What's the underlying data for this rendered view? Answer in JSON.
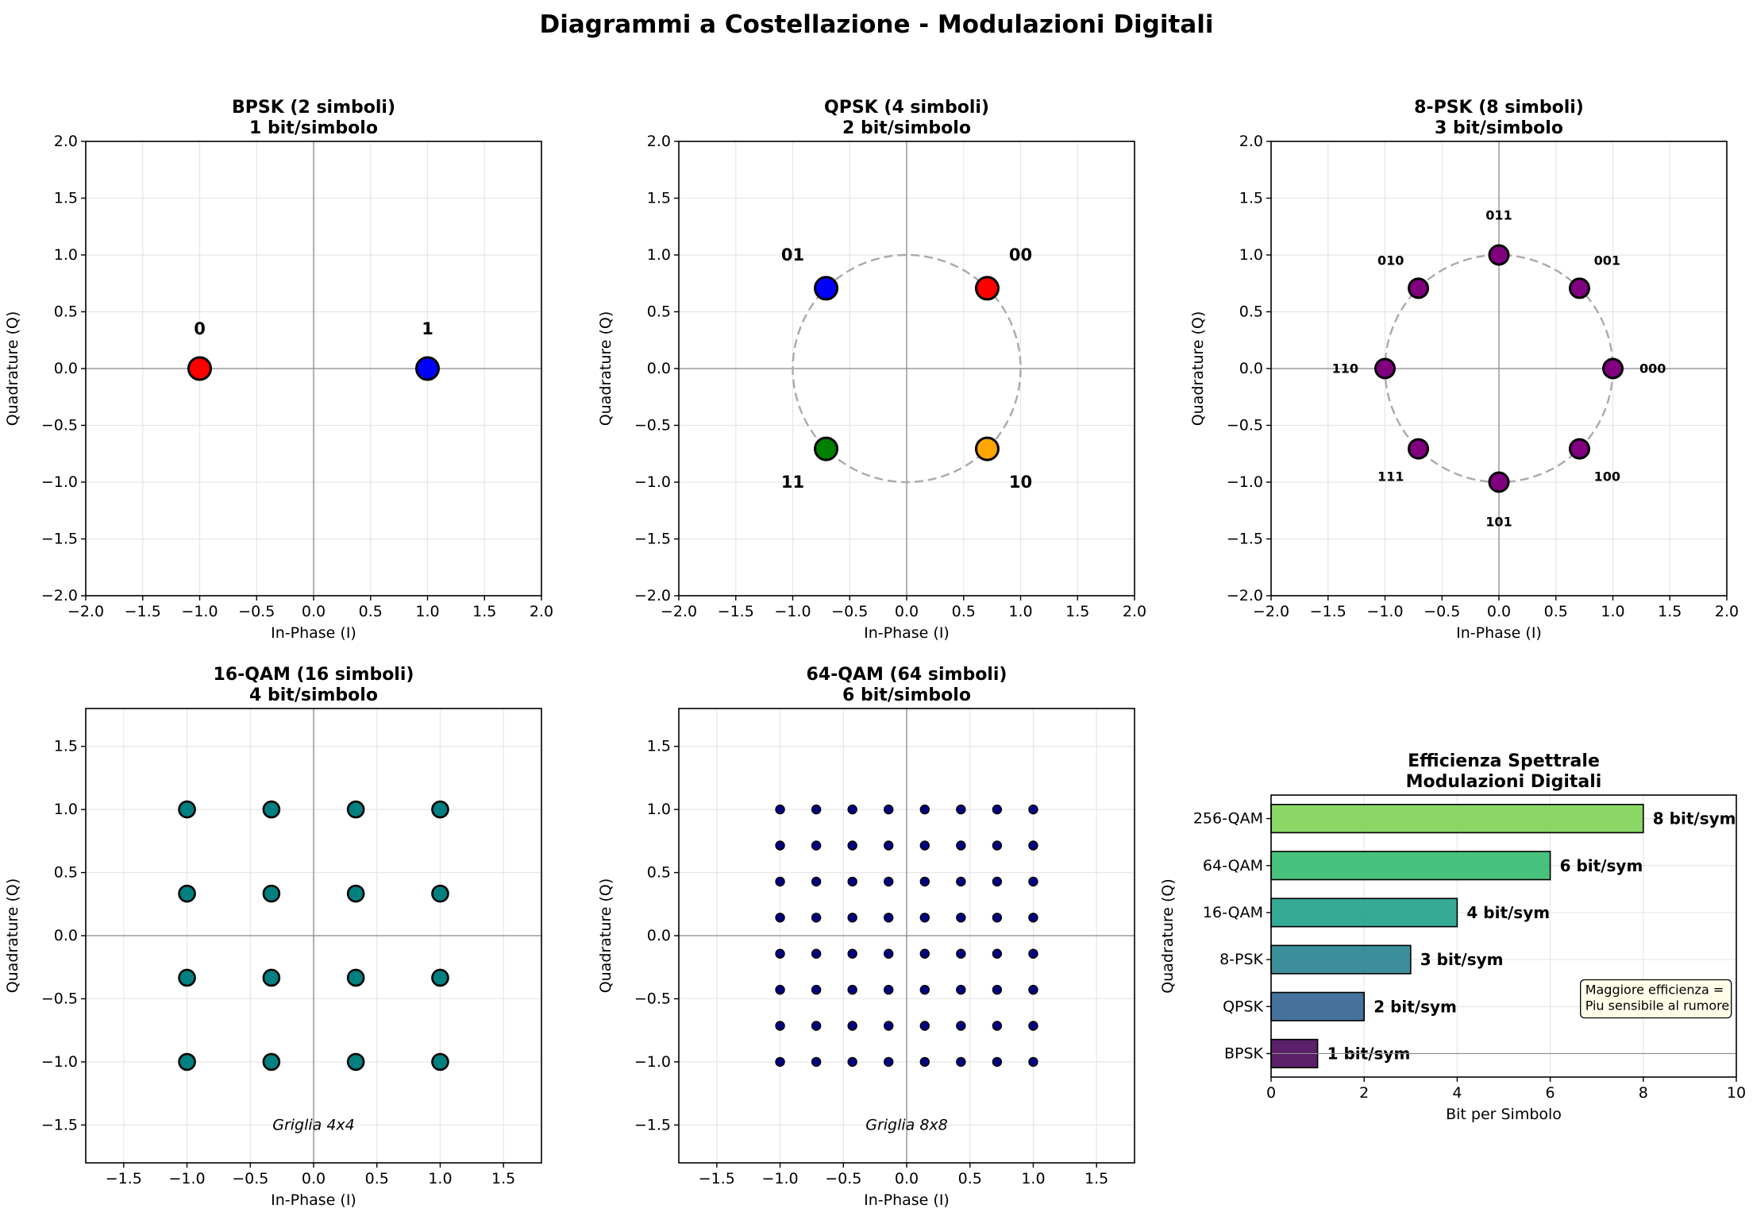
{
  "figure": {
    "suptitle": "Diagrammi a Costellazione - Modulazioni Digitali"
  },
  "chart_data": [
    {
      "id": "bpsk",
      "type": "scatter",
      "title_line1": "BPSK (2 simboli)",
      "title_line2": "1 bit/simbolo",
      "xlabel": "In-Phase (I)",
      "ylabel": "Quadrature (Q)",
      "xlim": [
        -2,
        2
      ],
      "ylim": [
        -2,
        2
      ],
      "xticks": [
        -2.0,
        -1.5,
        -1.0,
        -0.5,
        0.0,
        0.5,
        1.0,
        1.5,
        2.0
      ],
      "yticks": [
        -2.0,
        -1.5,
        -1.0,
        -0.5,
        0.0,
        0.5,
        1.0,
        1.5,
        2.0
      ],
      "tick_labels_x": [
        "−2.0",
        "−1.5",
        "−1.0",
        "−0.5",
        "0.0",
        "0.5",
        "1.0",
        "1.5",
        "2.0"
      ],
      "tick_labels_y": [
        "−2.0",
        "−1.5",
        "−1.0",
        "−0.5",
        "0.0",
        "0.5",
        "1.0",
        "1.5",
        "2.0"
      ],
      "grid": true,
      "unit_circle": false,
      "marker_size": 14,
      "label_size": 21,
      "points": [
        {
          "x": -1,
          "y": 0,
          "color": "#ff0000",
          "label": "0",
          "lx": -1,
          "ly": 0.35
        },
        {
          "x": 1,
          "y": 0,
          "color": "#0000ff",
          "label": "1",
          "lx": 1,
          "ly": 0.35
        }
      ]
    },
    {
      "id": "qpsk",
      "type": "scatter",
      "title_line1": "QPSK (4 simboli)",
      "title_line2": "2 bit/simbolo",
      "xlabel": "In-Phase (I)",
      "ylabel": "Quadrature (Q)",
      "xlim": [
        -2,
        2
      ],
      "ylim": [
        -2,
        2
      ],
      "xticks": [
        -2.0,
        -1.5,
        -1.0,
        -0.5,
        0.0,
        0.5,
        1.0,
        1.5,
        2.0
      ],
      "yticks": [
        -2.0,
        -1.5,
        -1.0,
        -0.5,
        0.0,
        0.5,
        1.0,
        1.5,
        2.0
      ],
      "tick_labels_x": [
        "−2.0",
        "−1.5",
        "−1.0",
        "−0.5",
        "0.0",
        "0.5",
        "1.0",
        "1.5",
        "2.0"
      ],
      "tick_labels_y": [
        "−2.0",
        "−1.5",
        "−1.0",
        "−0.5",
        "0.0",
        "0.5",
        "1.0",
        "1.5",
        "2.0"
      ],
      "grid": true,
      "unit_circle": true,
      "marker_size": 14,
      "label_size": 21,
      "points": [
        {
          "x": 0.707,
          "y": 0.707,
          "color": "#ff0000",
          "label": "00",
          "lx": 1.0,
          "ly": 1.0
        },
        {
          "x": -0.707,
          "y": 0.707,
          "color": "#0000ff",
          "label": "01",
          "lx": -1.0,
          "ly": 1.0
        },
        {
          "x": -0.707,
          "y": -0.707,
          "color": "#008000",
          "label": "11",
          "lx": -1.0,
          "ly": -1.0
        },
        {
          "x": 0.707,
          "y": -0.707,
          "color": "#ffa500",
          "label": "10",
          "lx": 1.0,
          "ly": -1.0
        }
      ]
    },
    {
      "id": "psk8",
      "type": "scatter",
      "title_line1": "8-PSK (8 simboli)",
      "title_line2": "3 bit/simbolo",
      "xlabel": "In-Phase (I)",
      "ylabel": "Quadrature (Q)",
      "xlim": [
        -2,
        2
      ],
      "ylim": [
        -2,
        2
      ],
      "xticks": [
        -2.0,
        -1.5,
        -1.0,
        -0.5,
        0.0,
        0.5,
        1.0,
        1.5,
        2.0
      ],
      "yticks": [
        -2.0,
        -1.5,
        -1.0,
        -0.5,
        0.0,
        0.5,
        1.0,
        1.5,
        2.0
      ],
      "tick_labels_x": [
        "−2.0",
        "−1.5",
        "−1.0",
        "−0.5",
        "0.0",
        "0.5",
        "1.0",
        "1.5",
        "2.0"
      ],
      "tick_labels_y": [
        "−2.0",
        "−1.5",
        "−1.0",
        "−0.5",
        "0.0",
        "0.5",
        "1.0",
        "1.5",
        "2.0"
      ],
      "grid": true,
      "unit_circle": true,
      "marker_size": 12,
      "label_size": 16,
      "points": [
        {
          "x": 1.0,
          "y": 0.0,
          "color": "#800080",
          "label": "000",
          "lx": 1.35,
          "ly": 0.0
        },
        {
          "x": 0.707,
          "y": 0.707,
          "color": "#800080",
          "label": "001",
          "lx": 0.95,
          "ly": 0.95
        },
        {
          "x": 0.0,
          "y": 1.0,
          "color": "#800080",
          "label": "011",
          "lx": 0.0,
          "ly": 1.35
        },
        {
          "x": -0.707,
          "y": 0.707,
          "color": "#800080",
          "label": "010",
          "lx": -0.95,
          "ly": 0.95
        },
        {
          "x": -1.0,
          "y": 0.0,
          "color": "#800080",
          "label": "110",
          "lx": -1.35,
          "ly": 0.0
        },
        {
          "x": -0.707,
          "y": -0.707,
          "color": "#800080",
          "label": "111",
          "lx": -0.95,
          "ly": -0.95
        },
        {
          "x": 0.0,
          "y": -1.0,
          "color": "#800080",
          "label": "101",
          "lx": 0.0,
          "ly": -1.35
        },
        {
          "x": 0.707,
          "y": -0.707,
          "color": "#800080",
          "label": "100",
          "lx": 0.95,
          "ly": -0.95
        }
      ]
    },
    {
      "id": "qam16",
      "type": "scatter",
      "title_line1": "16-QAM (16 simboli)",
      "title_line2": "4 bit/simbolo",
      "xlabel": "In-Phase (I)",
      "ylabel": "Quadrature (Q)",
      "xlim": [
        -1.8,
        1.8
      ],
      "ylim": [
        -1.8,
        1.8
      ],
      "xticks": [
        -1.5,
        -1.0,
        -0.5,
        0.0,
        0.5,
        1.0,
        1.5
      ],
      "yticks": [
        -1.5,
        -1.0,
        -0.5,
        0.0,
        0.5,
        1.0,
        1.5
      ],
      "tick_labels_x": [
        "−1.5",
        "−1.0",
        "−0.5",
        "0.0",
        "0.5",
        "1.0",
        "1.5"
      ],
      "tick_labels_y": [
        "−1.5",
        "−1.0",
        "−0.5",
        "0.0",
        "0.5",
        "1.0",
        "1.5"
      ],
      "grid": true,
      "unit_circle": false,
      "grid_levels": [
        -1.0,
        -0.3333,
        0.3333,
        1.0
      ],
      "point_color": "#008080",
      "marker_size": 10,
      "annotation": {
        "text": "Griglia 4x4",
        "x": 0.0,
        "y": -1.5
      }
    },
    {
      "id": "qam64",
      "type": "scatter",
      "title_line1": "64-QAM (64 simboli)",
      "title_line2": "6 bit/simbolo",
      "xlabel": "In-Phase (I)",
      "ylabel": "Quadrature (Q)",
      "xlim": [
        -1.8,
        1.8
      ],
      "ylim": [
        -1.8,
        1.8
      ],
      "xticks": [
        -1.5,
        -1.0,
        -0.5,
        0.0,
        0.5,
        1.0,
        1.5
      ],
      "yticks": [
        -1.5,
        -1.0,
        -0.5,
        0.0,
        0.5,
        1.0,
        1.5
      ],
      "tick_labels_x": [
        "−1.5",
        "−1.0",
        "−0.5",
        "0.0",
        "0.5",
        "1.0",
        "1.5"
      ],
      "tick_labels_y": [
        "−1.5",
        "−1.0",
        "−0.5",
        "0.0",
        "0.5",
        "1.0",
        "1.5"
      ],
      "grid": true,
      "unit_circle": false,
      "grid_levels": [
        -1.0,
        -0.7143,
        -0.4286,
        -0.1429,
        0.1429,
        0.4286,
        0.7143,
        1.0
      ],
      "point_color": "#000080",
      "marker_size": 5.5,
      "annotation": {
        "text": "Griglia 8x8",
        "x": 0.0,
        "y": -1.5
      }
    },
    {
      "id": "efficiency",
      "type": "bar",
      "orientation": "horizontal",
      "title_line1": "Efficienza Spettrale",
      "title_line2": "Modulazioni Digitali",
      "xlabel": "Bit per Simbolo",
      "ylabel": "Quadrature (Q)",
      "xlim": [
        0,
        10
      ],
      "xticks": [
        0,
        2,
        4,
        6,
        8,
        10
      ],
      "tick_labels_x": [
        "0",
        "2",
        "4",
        "6",
        "8",
        "10"
      ],
      "categories": [
        "BPSK",
        "QPSK",
        "8-PSK",
        "16-QAM",
        "64-QAM",
        "256-QAM"
      ],
      "values": [
        1,
        2,
        3,
        4,
        6,
        8
      ],
      "value_labels": [
        "1 bit/sym",
        "2 bit/sym",
        "3 bit/sym",
        "4 bit/sym",
        "6 bit/sym",
        "8 bit/sym"
      ],
      "colors": [
        "#440154",
        "#2c5f8d",
        "#21808c",
        "#1a9e86",
        "#2db96b",
        "#7ad151"
      ],
      "note_lines": [
        "Maggiore efficienza =",
        "Piu sensibile al rumore"
      ],
      "note_bg": "#fffde8"
    }
  ]
}
